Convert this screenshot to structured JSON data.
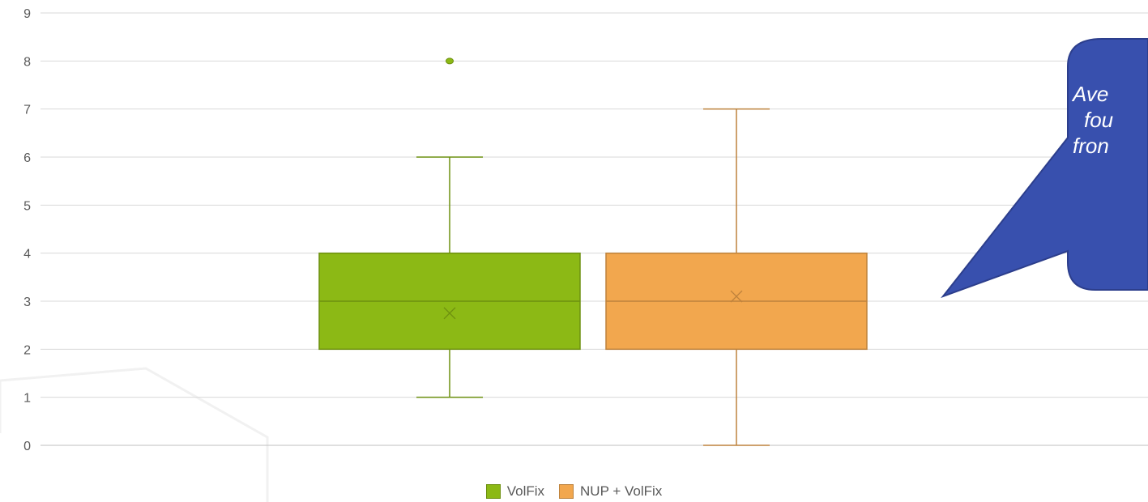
{
  "chart_data": {
    "type": "box",
    "ylim": [
      0,
      9
    ],
    "yticks": [
      0,
      1,
      2,
      3,
      4,
      5,
      6,
      7,
      8,
      9
    ],
    "grid": true,
    "legend_position": "bottom",
    "series": [
      {
        "name": "VolFix",
        "color": "#8CB915",
        "min": 1,
        "q1": 2,
        "median": 3,
        "q3": 4,
        "max": 6,
        "mean": 2.75,
        "outliers": [
          8
        ]
      },
      {
        "name": "NUP + VolFix",
        "color": "#F2A74E",
        "min": 0,
        "q1": 2,
        "median": 3,
        "q3": 4,
        "max": 7,
        "mean": 3.1,
        "outliers": []
      }
    ]
  },
  "callout": {
    "color": "#3850AE",
    "lines": [
      "Ave",
      "fou",
      "fron"
    ]
  }
}
